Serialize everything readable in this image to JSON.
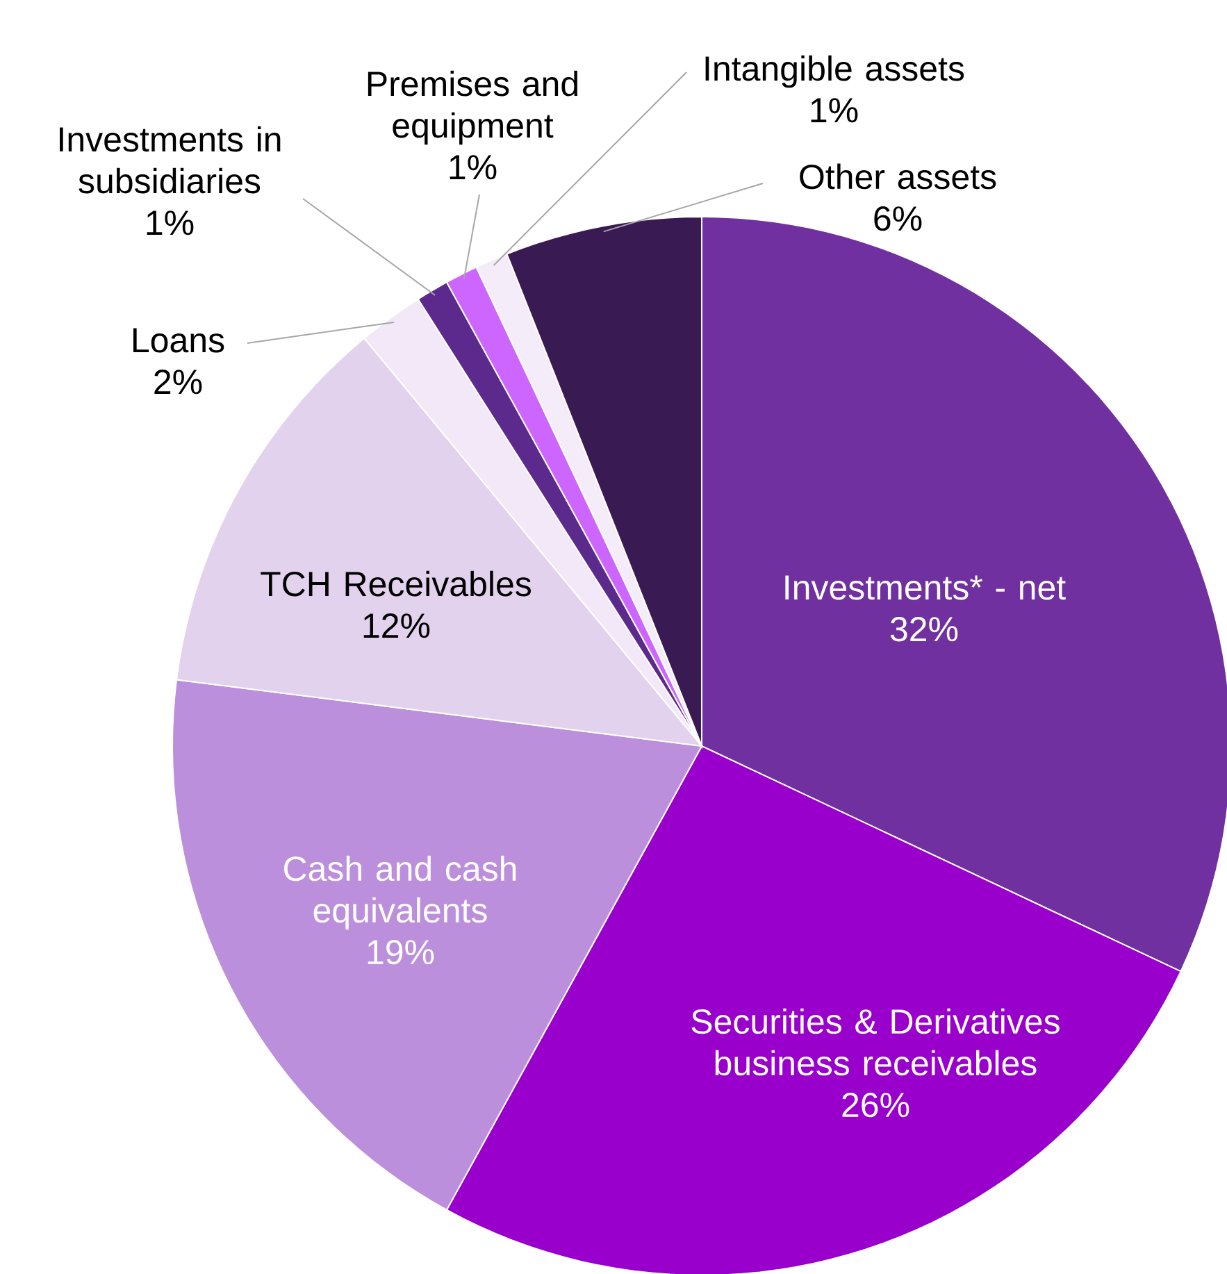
{
  "chart_data": {
    "type": "pie",
    "categories": [
      "Investments* - net",
      "Securities & Derivatives business receivables",
      "Cash and cash equivalents",
      "TCH Receivables",
      "Loans",
      "Investments in subsidiaries",
      "Premises and equipment",
      "Intangible assets",
      "Other assets"
    ],
    "values": [
      32,
      26,
      19,
      12,
      2,
      1,
      1,
      1,
      6
    ],
    "value_labels": [
      "32%",
      "26%",
      "19%",
      "12%",
      "2%",
      "1%",
      "1%",
      "1%",
      "6%"
    ],
    "colors": [
      "#7030a0",
      "#9900cc",
      "#bb8fdc",
      "#e2d2ee",
      "#f2e8f7",
      "#5c2a8c",
      "#cc66ff",
      "#f5ecfa",
      "#3a1a52"
    ],
    "data_labels": true
  }
}
